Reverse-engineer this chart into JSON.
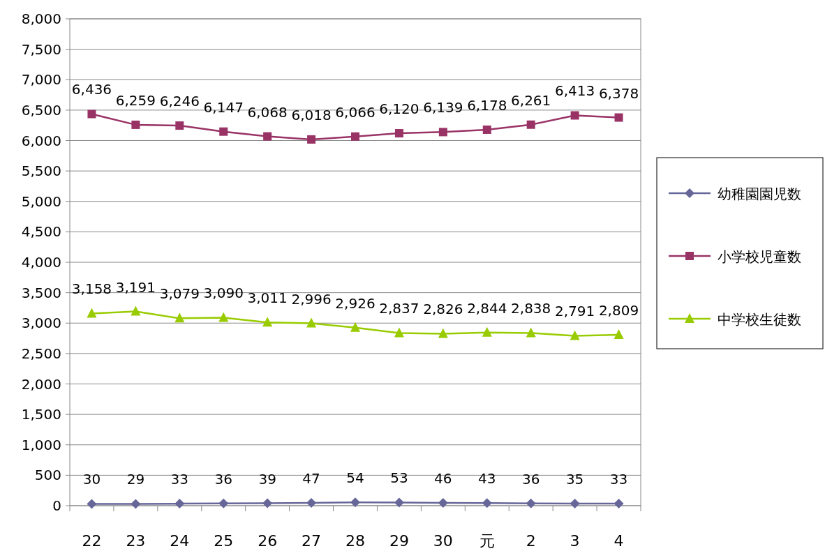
{
  "chart_data": {
    "type": "line",
    "categories": [
      "22",
      "23",
      "24",
      "25",
      "26",
      "27",
      "28",
      "29",
      "30",
      "元",
      "2",
      "3",
      "4"
    ],
    "series": [
      {
        "name": "幼稚園園児数",
        "color": "#666699",
        "marker": "diamond",
        "values": [
          30,
          29,
          33,
          36,
          39,
          47,
          54,
          53,
          46,
          43,
          36,
          35,
          33
        ],
        "value_labels": [
          "30",
          "29",
          "33",
          "36",
          "39",
          "47",
          "54",
          "53",
          "46",
          "43",
          "36",
          "35",
          "33"
        ]
      },
      {
        "name": "小学校児童数",
        "color": "#993366",
        "marker": "square",
        "values": [
          6436,
          6259,
          6246,
          6147,
          6068,
          6018,
          6066,
          6120,
          6139,
          6178,
          6261,
          6413,
          6378
        ],
        "value_labels": [
          "6,436",
          "6,259",
          "6,246",
          "6,147",
          "6,068",
          "6,018",
          "6,066",
          "6,120",
          "6,139",
          "6,178",
          "6,261",
          "6,413",
          "6,378"
        ]
      },
      {
        "name": "中学校生徒数",
        "color": "#99cc00",
        "marker": "triangle",
        "values": [
          3158,
          3191,
          3079,
          3090,
          3011,
          2996,
          2926,
          2837,
          2826,
          2844,
          2838,
          2791,
          2809
        ],
        "value_labels": [
          "3,158",
          "3,191",
          "3,079",
          "3,090",
          "3,011",
          "2,996",
          "2,926",
          "2,837",
          "2,826",
          "2,844",
          "2,838",
          "2,791",
          "2,809"
        ]
      }
    ],
    "ylim": [
      0,
      8000
    ],
    "yticks": [
      0,
      500,
      {
        "value": 1000,
        "label": "1,000"
      },
      {
        "value": 1500,
        "label": "1,500"
      },
      {
        "value": 2000,
        "label": "2,000"
      },
      {
        "value": 2500,
        "label": "2,500"
      },
      {
        "value": 3000,
        "label": "3,000"
      },
      {
        "value": 3500,
        "label": "3,500"
      },
      {
        "value": 4000,
        "label": "4,000"
      },
      {
        "value": 4500,
        "label": "4,500"
      },
      {
        "value": 5000,
        "label": "5,000"
      },
      {
        "value": 5500,
        "label": "5,500"
      },
      {
        "value": 6000,
        "label": "6,000"
      },
      {
        "value": 6500,
        "label": "6,500"
      },
      {
        "value": 7000,
        "label": "7,000"
      },
      {
        "value": 7500,
        "label": "7,500"
      },
      {
        "value": 8000,
        "label": "8,000"
      }
    ],
    "grid": "y",
    "legend": "right"
  }
}
